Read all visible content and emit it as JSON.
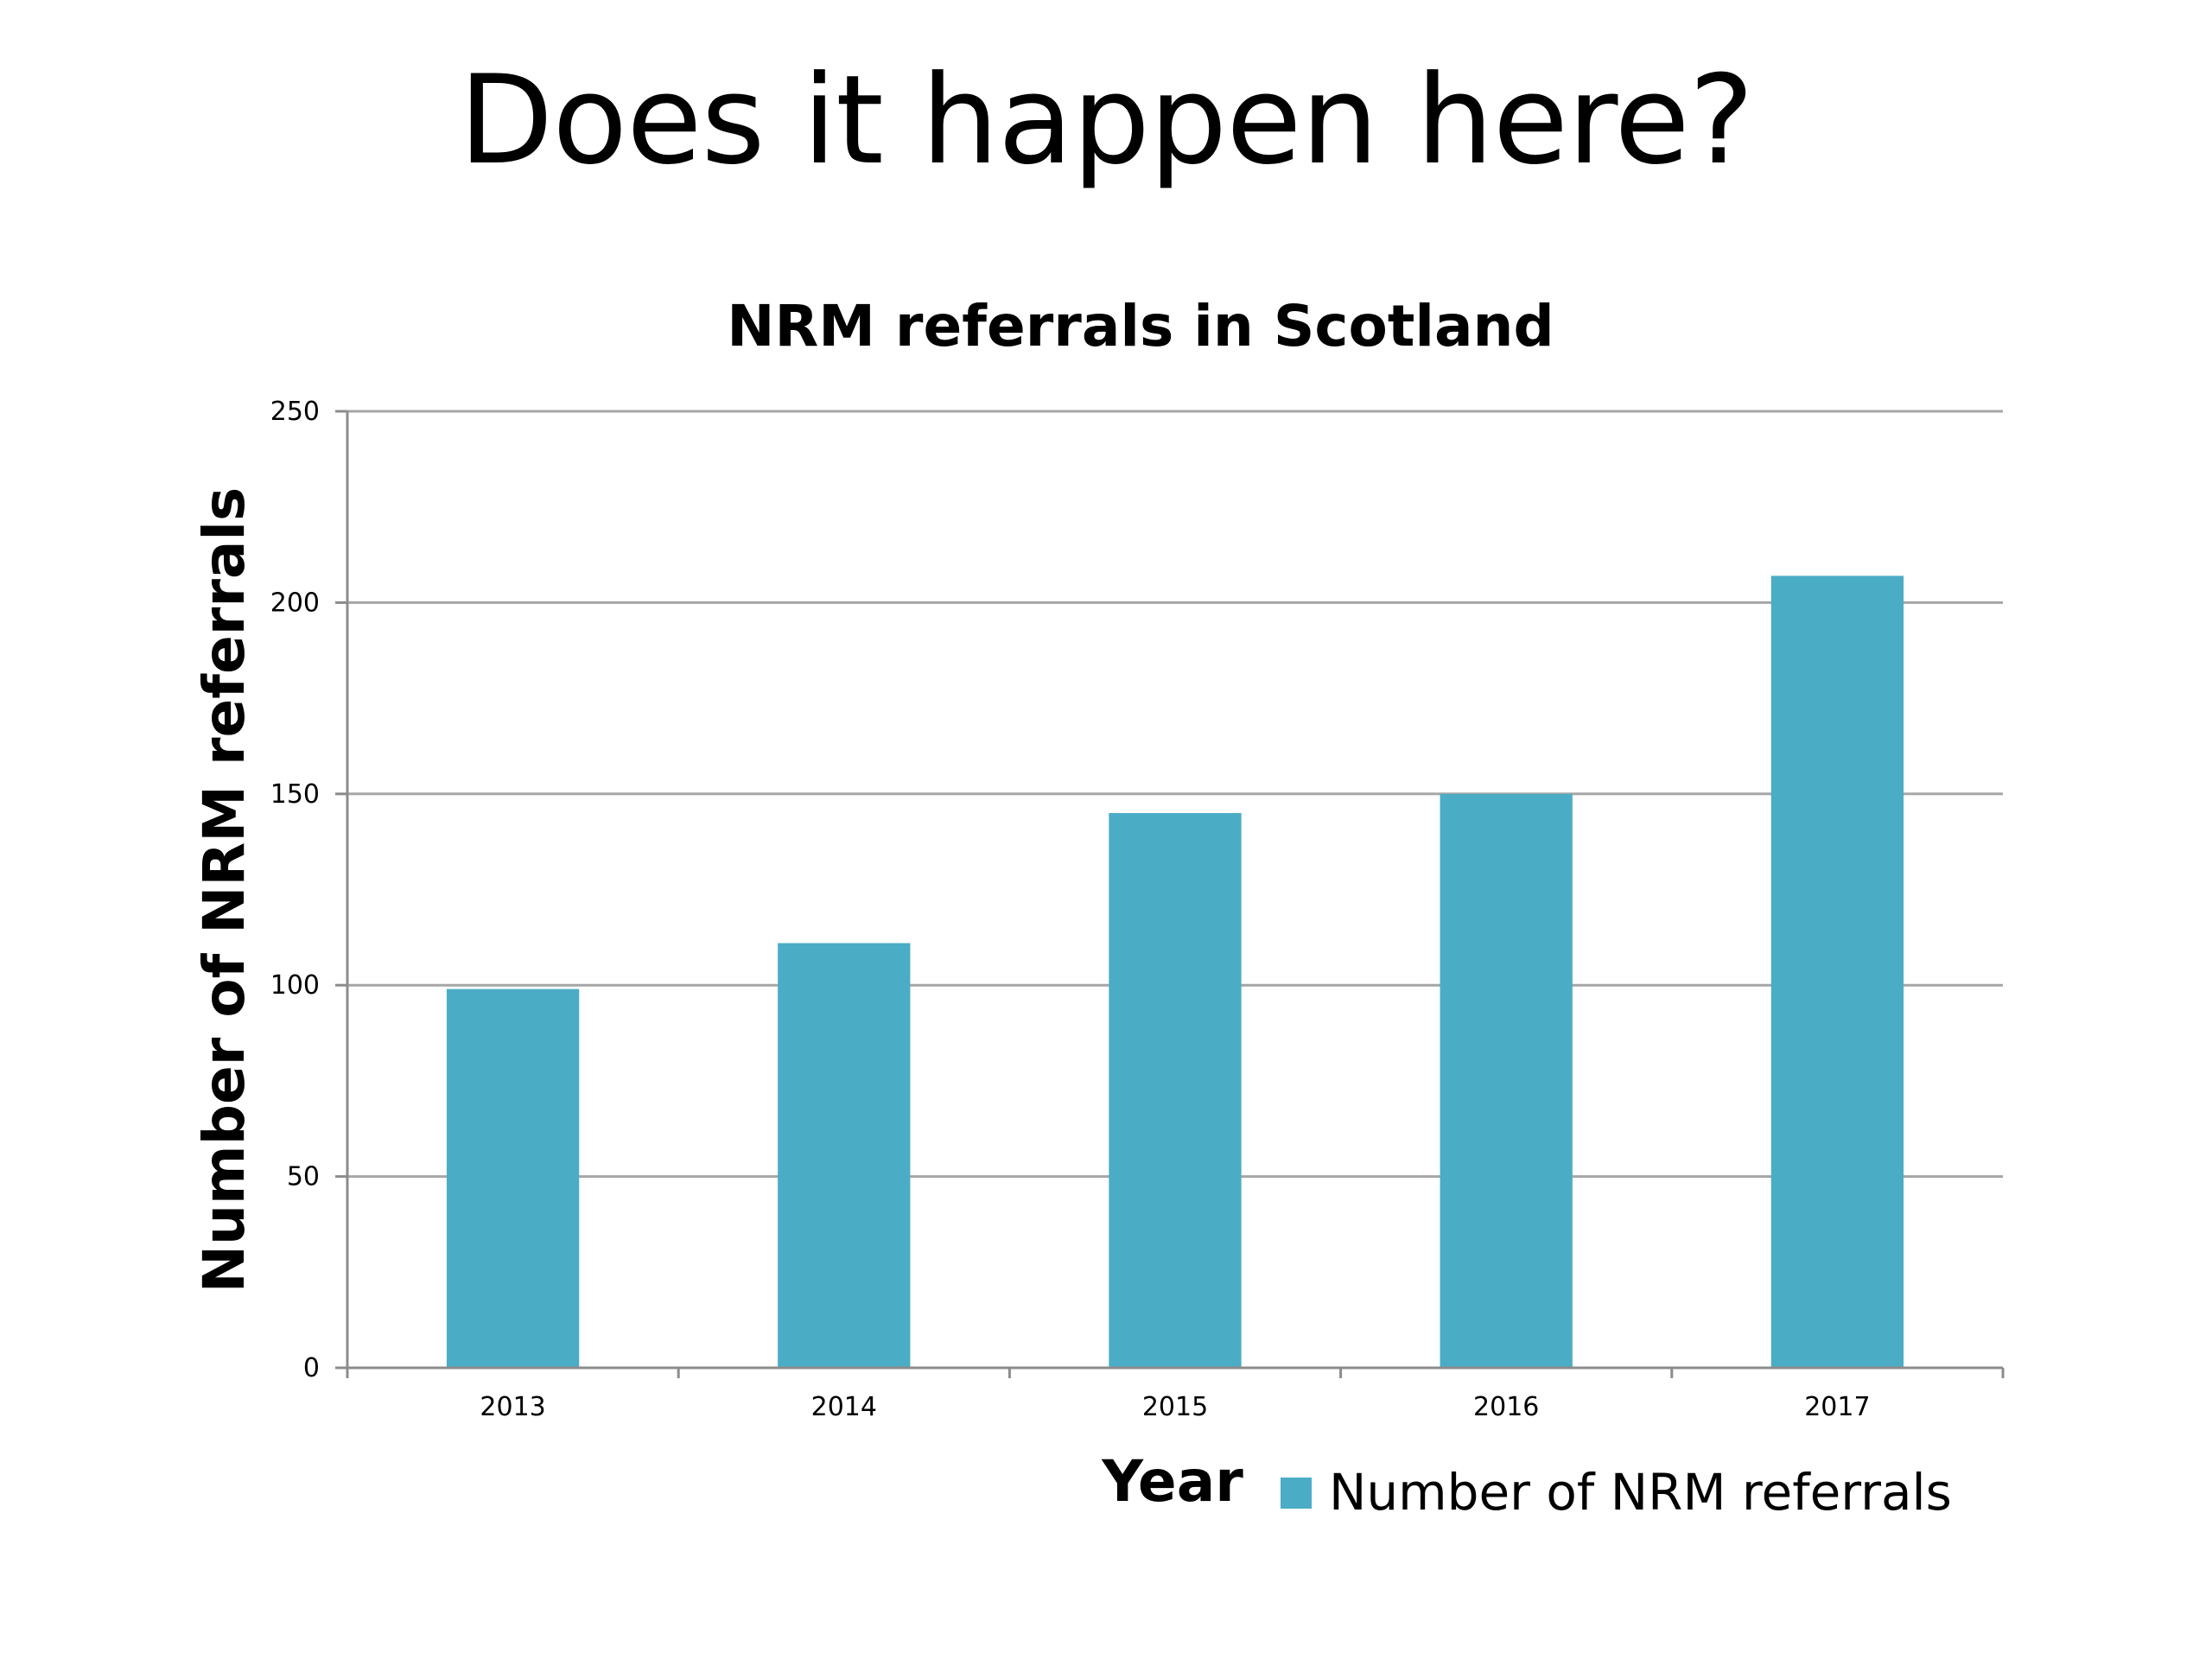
{
  "slide": {
    "title": "Does it happen here?"
  },
  "chart_data": {
    "type": "bar",
    "title": "NRM referrals in Scotland",
    "xlabel": "Year",
    "ylabel": "Number of NRM referrals",
    "categories": [
      "2013",
      "2014",
      "2015",
      "2016",
      "2017"
    ],
    "series": [
      {
        "name": "Number of NRM referrals",
        "values": [
          99,
          111,
          145,
          150,
          207
        ]
      }
    ],
    "ylim": [
      0,
      250
    ],
    "yticks": [
      0,
      50,
      100,
      150,
      200,
      250
    ],
    "grid": true,
    "legend": "bottom-right",
    "colors": {
      "bar": "#4BACC6",
      "grid": "#A6A6A6",
      "axis": "#8C8C8C",
      "text": "#000000"
    }
  }
}
